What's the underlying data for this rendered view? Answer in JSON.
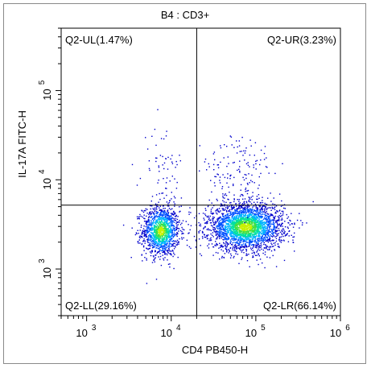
{
  "chart_data": {
    "type": "scatter",
    "title": "B4 : CD3+",
    "xlabel": "CD4 PB450-H",
    "ylabel": "IL-17A FITC-H",
    "x_scale": "log",
    "y_scale": "log",
    "xlim": [
      500,
      1000000
    ],
    "ylim": [
      300,
      500000
    ],
    "x_ticks": [
      {
        "value": 1000,
        "base": "10",
        "exp": "3"
      },
      {
        "value": 10000,
        "base": "10",
        "exp": "4"
      },
      {
        "value": 100000,
        "base": "10",
        "exp": "5"
      },
      {
        "value": 1000000,
        "base": "10",
        "exp": "6"
      }
    ],
    "y_ticks": [
      {
        "value": 1000,
        "base": "10",
        "exp": "3"
      },
      {
        "value": 10000,
        "base": "10",
        "exp": "4"
      },
      {
        "value": 100000,
        "base": "10",
        "exp": "5"
      }
    ],
    "gate": {
      "x": 20000,
      "y": 5200
    },
    "quadrants": [
      {
        "id": "ul",
        "label": "Q2-UL(1.47%)",
        "position": "top-left"
      },
      {
        "id": "ur",
        "label": "Q2-UR(3.23%)",
        "position": "top-right"
      },
      {
        "id": "ll",
        "label": "Q2-LL(29.16%)",
        "position": "bottom-left"
      },
      {
        "id": "lr",
        "label": "Q2-LR(66.14%)",
        "position": "bottom-right"
      }
    ],
    "populations": [
      {
        "cx": 7500,
        "cy": 2700,
        "sx": 0.11,
        "sy": 0.14,
        "n": 1300
      },
      {
        "cx": 75000,
        "cy": 3000,
        "sx": 0.22,
        "sy": 0.13,
        "n": 2700
      },
      {
        "cx": 8000,
        "cy": 13000,
        "sx": 0.12,
        "sy": 0.25,
        "n": 70
      },
      {
        "cx": 60000,
        "cy": 12000,
        "sx": 0.22,
        "sy": 0.22,
        "n": 150
      }
    ],
    "density_colors": [
      "#0000cc",
      "#0050ff",
      "#00b4ff",
      "#00e0a0",
      "#40e040",
      "#c8f000"
    ]
  }
}
